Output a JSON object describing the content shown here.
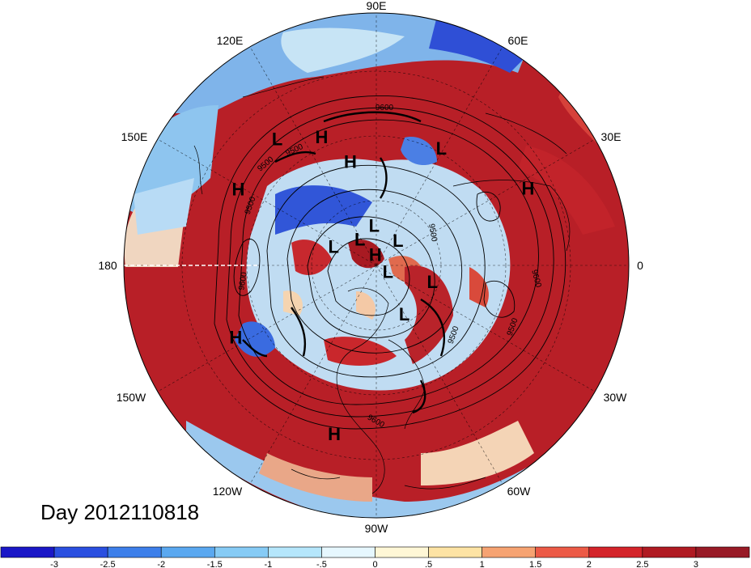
{
  "title": "Day 2012110818",
  "longitude_labels": [
    "90E",
    "60E",
    "30E",
    "0",
    "30W",
    "60W",
    "90W",
    "120W",
    "150W",
    "180",
    "150E",
    "120E"
  ],
  "pressure_centers": [
    {
      "type": "L",
      "lon": 61,
      "lat": 34
    },
    {
      "type": "H",
      "lon": 113,
      "lat": 32
    },
    {
      "type": "H",
      "lon": 104,
      "lat": 44
    },
    {
      "type": "L",
      "lon": 128,
      "lat": 25
    },
    {
      "type": "H",
      "lon": 27,
      "lat": 22
    },
    {
      "type": "H",
      "lon": 151,
      "lat": 26
    },
    {
      "type": "L",
      "lon": 93,
      "lat": 72
    },
    {
      "type": "L",
      "lon": 49,
      "lat": 75
    },
    {
      "type": "H",
      "lon": 95,
      "lat": 85
    },
    {
      "type": "L",
      "lon": 122,
      "lat": 76
    },
    {
      "type": "L",
      "lon": 332,
      "lat": 84
    },
    {
      "type": "L",
      "lon": 156,
      "lat": 69
    },
    {
      "type": "L",
      "lon": 344,
      "lat": 64
    },
    {
      "type": "L",
      "lon": 300,
      "lat": 65
    },
    {
      "type": "H",
      "lon": 207,
      "lat": 26
    },
    {
      "type": "H",
      "lon": 256,
      "lat": 21
    }
  ],
  "contour_labels": [
    "9600",
    "9500",
    "9500",
    "9500",
    "9500",
    "9500",
    "9600",
    "9600",
    "9600",
    "9500"
  ],
  "colorbar": {
    "levels": [
      "-3",
      "-2.5",
      "-2",
      "-1.5",
      "-1",
      "-.5",
      "0",
      ".5",
      "1",
      "1.5",
      "2",
      "2.5",
      "3"
    ],
    "colors": [
      "#1a17c7",
      "#2a4fe0",
      "#3d7fea",
      "#5aa8f0",
      "#86cbf5",
      "#b5e6fb",
      "#e6f7fe",
      "#fff7d6",
      "#fde3a4",
      "#f6a372",
      "#ec5a46",
      "#d4242a",
      "#b01a22",
      "#981a26"
    ]
  }
}
